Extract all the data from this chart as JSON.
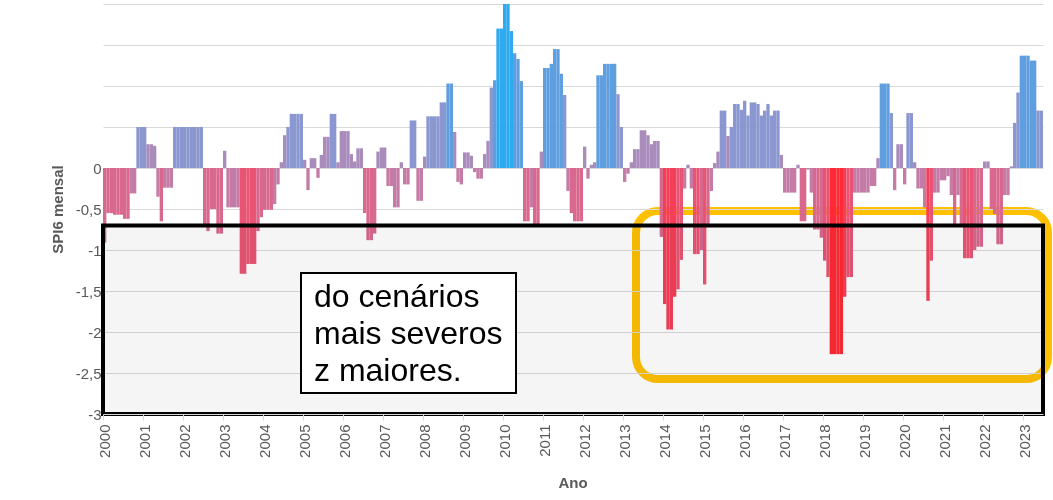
{
  "chart_data": {
    "type": "bar",
    "ylabel": "SPI6 mensal",
    "xlabel": "Ano",
    "annotations": [
      "do cenários",
      "mais severos",
      "z maiores."
    ],
    "categories": [
      "2000",
      null,
      null,
      null,
      null,
      null,
      null,
      null,
      null,
      null,
      null,
      null,
      "2001",
      null,
      null,
      null,
      null,
      null,
      null,
      null,
      null,
      null,
      null,
      null,
      "2002",
      null,
      null,
      null,
      null,
      null,
      null,
      null,
      null,
      null,
      null,
      null,
      "2003",
      null,
      null,
      null,
      null,
      null,
      null,
      null,
      null,
      null,
      null,
      null,
      "2004",
      null,
      null,
      null,
      null,
      null,
      null,
      null,
      null,
      null,
      null,
      null,
      "2005",
      null,
      null,
      null,
      null,
      null,
      null,
      null,
      null,
      null,
      null,
      null,
      "2006",
      null,
      null,
      null,
      null,
      null,
      null,
      null,
      null,
      null,
      null,
      null,
      "2007",
      null,
      null,
      null,
      null,
      null,
      null,
      null,
      null,
      null,
      null,
      null,
      "2008",
      null,
      null,
      null,
      null,
      null,
      null,
      null,
      null,
      null,
      null,
      null,
      "2009",
      null,
      null,
      null,
      null,
      null,
      null,
      null,
      null,
      null,
      null,
      null,
      "2010",
      null,
      null,
      null,
      null,
      null,
      null,
      null,
      null,
      null,
      null,
      null,
      "2011",
      null,
      null,
      null,
      null,
      null,
      null,
      null,
      null,
      null,
      null,
      null,
      "2012",
      null,
      null,
      null,
      null,
      null,
      null,
      null,
      null,
      null,
      null,
      null,
      "2013",
      null,
      null,
      null,
      null,
      null,
      null,
      null,
      null,
      null,
      null,
      null,
      "2014",
      null,
      null,
      null,
      null,
      null,
      null,
      null,
      null,
      null,
      null,
      null,
      "2015",
      null,
      null,
      null,
      null,
      null,
      null,
      null,
      null,
      null,
      null,
      null,
      "2016",
      null,
      null,
      null,
      null,
      null,
      null,
      null,
      null,
      null,
      null,
      null,
      "2017",
      null,
      null,
      null,
      null,
      null,
      null,
      null,
      null,
      null,
      null,
      null,
      "2018",
      null,
      null,
      null,
      null,
      null,
      null,
      null,
      null,
      null,
      null,
      null,
      "2019",
      null,
      null,
      null,
      null,
      null,
      null,
      null,
      null,
      null,
      null,
      null,
      "2020",
      null,
      null,
      null,
      null,
      null,
      null,
      null,
      null,
      null,
      null,
      null,
      "2021",
      null,
      null,
      null,
      null,
      null,
      null,
      null,
      null,
      null,
      null,
      null,
      "2022",
      null,
      null,
      null,
      null,
      null,
      null,
      null,
      null,
      null,
      null,
      null,
      "2023",
      null,
      null,
      null,
      null,
      null
    ],
    "values": [
      -0.91,
      -0.55,
      -0.55,
      -0.57,
      -0.57,
      -0.57,
      -0.62,
      -0.62,
      -0.31,
      -0.31,
      0.5,
      0.5,
      0.5,
      0.29,
      0.29,
      0.27,
      -0.35,
      -0.65,
      -0.24,
      -0.24,
      -0.24,
      0.5,
      0.5,
      0.5,
      0.5,
      0.5,
      0.5,
      0.5,
      0.5,
      0.5,
      -0.7,
      -0.77,
      -0.5,
      -0.5,
      -0.8,
      -0.8,
      0.21,
      -0.48,
      -0.48,
      -0.48,
      -0.48,
      -1.29,
      -1.29,
      -1.17,
      -1.17,
      -1.17,
      -0.77,
      -0.6,
      -0.51,
      -0.51,
      -0.51,
      -0.44,
      -0.2,
      0.07,
      0.4,
      0.5,
      0.66,
      0.66,
      0.66,
      0.66,
      0.1,
      -0.27,
      0.12,
      0.12,
      -0.12,
      0.16,
      0.38,
      0.38,
      0.66,
      0.66,
      0.07,
      0.45,
      0.45,
      0.45,
      0.17,
      0.08,
      0.24,
      0.24,
      -0.55,
      -0.88,
      -0.88,
      -0.8,
      0.2,
      0.25,
      0.25,
      -0.22,
      -0.22,
      -0.48,
      -0.48,
      0.07,
      -0.2,
      -0.2,
      0.58,
      0.58,
      -0.4,
      -0.4,
      0.14,
      0.63,
      0.63,
      0.63,
      0.63,
      0.8,
      0.8,
      1.03,
      1.03,
      0.44,
      -0.17,
      -0.2,
      0.19,
      0.19,
      0.15,
      -0.05,
      -0.13,
      -0.13,
      0.17,
      0.33,
      0.98,
      1.07,
      1.7,
      1.7,
      2,
      2,
      1.67,
      1.4,
      1.33,
      1.06,
      -0.65,
      -0.65,
      -0.48,
      -0.72,
      -0.72,
      0.2,
      1.22,
      1.22,
      1.27,
      1.45,
      1.45,
      1.15,
      0.89,
      -0.28,
      -0.55,
      -0.65,
      -0.65,
      -0.65,
      0.26,
      -0.13,
      0.04,
      0.07,
      1.13,
      1.13,
      1.27,
      1.27,
      1.27,
      1.27,
      0.9,
      0.5,
      -0.17,
      -0.07,
      0.07,
      0.23,
      0.23,
      0.46,
      0.46,
      0.4,
      0.29,
      0.33,
      0.33,
      -0.84,
      -1.66,
      -1.97,
      -1.97,
      -1.57,
      -1.48,
      -1.12,
      -0.25,
      0.04,
      -0.25,
      -1.05,
      -1.05,
      -1,
      -1.42,
      -0.72,
      -0.28,
      0.06,
      0.2,
      0.7,
      0.7,
      0.39,
      0.5,
      0.78,
      0.78,
      0.71,
      0.82,
      0.64,
      0.8,
      0.8,
      0.78,
      0.64,
      0.7,
      0.78,
      0.64,
      0.7,
      0.7,
      0.16,
      -0.3,
      -0.3,
      -0.3,
      -0.3,
      0.04,
      -0.65,
      -0.65,
      -0.02,
      -0.3,
      -0.75,
      -0.75,
      -0.85,
      -1.13,
      -1.33,
      -2.27,
      -2.27,
      -2.27,
      -2.27,
      -1.57,
      -1.33,
      -1.33,
      -0.3,
      -0.3,
      -0.3,
      -0.3,
      -0.3,
      -0.22,
      -0.22,
      0.12,
      1.03,
      1.03,
      1.03,
      0.67,
      -0.27,
      0.29,
      0.29,
      -0.2,
      0.67,
      0.67,
      0.07,
      -0.25,
      -0.25,
      -0.48,
      -1.62,
      -1.13,
      -0.3,
      -0.3,
      -0.15,
      -0.15,
      -0.1,
      -0.33,
      -0.7,
      -0.33,
      -0.7,
      -1.1,
      -1.1,
      -1.1,
      -1,
      -0.96,
      -0.96,
      0.08,
      0.08,
      -0.5,
      -0.56,
      -0.93,
      -0.93,
      -0.33,
      -0.33,
      0.02,
      0.55,
      0.92,
      1.37,
      1.37,
      1.37,
      1.31,
      1.31,
      0.7,
      0.7
    ],
    "colors": [
      "#d9688f",
      "#d9688f",
      "#d9688f",
      "#d9688f",
      "#d9688f",
      "#d9688f",
      "#d9688f",
      "#d9688f",
      "#c47ca6",
      "#c47ca6",
      "#8a97d0",
      "#8a97d0",
      "#8a97d0",
      "#a98cbc",
      "#a98cbc",
      "#a98cbc",
      "#c47ca6",
      "#d9688f",
      "#c47ca6",
      "#c47ca6",
      "#c47ca6",
      "#8a97d0",
      "#8a97d0",
      "#8a97d0",
      "#8a97d0",
      "#8a97d0",
      "#8a97d0",
      "#8a97d0",
      "#8a97d0",
      "#8a97d0",
      "#d9688f",
      "#d9688f",
      "#d9688f",
      "#d9688f",
      "#d9688f",
      "#d9688f",
      "#a98cbc",
      "#c47ca6",
      "#c47ca6",
      "#c47ca6",
      "#c47ca6",
      "#ea5474",
      "#ea5474",
      "#ea5474",
      "#ea5474",
      "#ea5474",
      "#d9688f",
      "#d9688f",
      "#d9688f",
      "#d9688f",
      "#d9688f",
      "#c47ca6",
      "#c47ca6",
      "#a98cbc",
      "#a98cbc",
      "#8a97d0",
      "#8a97d0",
      "#8a97d0",
      "#8a97d0",
      "#8a97d0",
      "#a98cbc",
      "#c47ca6",
      "#a98cbc",
      "#a98cbc",
      "#c47ca6",
      "#a98cbc",
      "#a98cbc",
      "#a98cbc",
      "#8a97d0",
      "#8a97d0",
      "#a98cbc",
      "#a98cbc",
      "#a98cbc",
      "#a98cbc",
      "#a98cbc",
      "#a98cbc",
      "#a98cbc",
      "#a98cbc",
      "#d9688f",
      "#d9688f",
      "#d9688f",
      "#d9688f",
      "#a98cbc",
      "#a98cbc",
      "#a98cbc",
      "#c47ca6",
      "#c47ca6",
      "#c47ca6",
      "#c47ca6",
      "#a98cbc",
      "#c47ca6",
      "#c47ca6",
      "#8a97d0",
      "#8a97d0",
      "#c47ca6",
      "#c47ca6",
      "#a98cbc",
      "#8a97d0",
      "#8a97d0",
      "#8a97d0",
      "#8a97d0",
      "#8a97d0",
      "#8a97d0",
      "#5f9fe0",
      "#5f9fe0",
      "#a98cbc",
      "#c47ca6",
      "#c47ca6",
      "#a98cbc",
      "#a98cbc",
      "#a98cbc",
      "#c47ca6",
      "#c47ca6",
      "#c47ca6",
      "#a98cbc",
      "#a98cbc",
      "#8a97d0",
      "#5f9fe0",
      "#2eaaf0",
      "#2eaaf0",
      "#2eaaf0",
      "#2eaaf0",
      "#2eaaf0",
      "#5f9fe0",
      "#5f9fe0",
      "#5f9fe0",
      "#d9688f",
      "#d9688f",
      "#c47ca6",
      "#d9688f",
      "#d9688f",
      "#a98cbc",
      "#5f9fe0",
      "#5f9fe0",
      "#5f9fe0",
      "#5f9fe0",
      "#5f9fe0",
      "#5f9fe0",
      "#8a97d0",
      "#c47ca6",
      "#d9688f",
      "#d9688f",
      "#d9688f",
      "#d9688f",
      "#a98cbc",
      "#c47ca6",
      "#a98cbc",
      "#a98cbc",
      "#5f9fe0",
      "#5f9fe0",
      "#5f9fe0",
      "#5f9fe0",
      "#5f9fe0",
      "#5f9fe0",
      "#8a97d0",
      "#8a97d0",
      "#c47ca6",
      "#c47ca6",
      "#a98cbc",
      "#a98cbc",
      "#a98cbc",
      "#a98cbc",
      "#a98cbc",
      "#a98cbc",
      "#a98cbc",
      "#a98cbc",
      "#a98cbc",
      "#d9688f",
      "#f53f58",
      "#f53f58",
      "#f53f58",
      "#f53f58",
      "#ea5474",
      "#ea5474",
      "#c47ca6",
      "#a98cbc",
      "#c47ca6",
      "#ea5474",
      "#ea5474",
      "#d9688f",
      "#ea5474",
      "#d9688f",
      "#c47ca6",
      "#a98cbc",
      "#a98cbc",
      "#8a97d0",
      "#8a97d0",
      "#a98cbc",
      "#8a97d0",
      "#8a97d0",
      "#8a97d0",
      "#8a97d0",
      "#8a97d0",
      "#8a97d0",
      "#8a97d0",
      "#8a97d0",
      "#8a97d0",
      "#8a97d0",
      "#8a97d0",
      "#8a97d0",
      "#8a97d0",
      "#8a97d0",
      "#8a97d0",
      "#a98cbc",
      "#c47ca6",
      "#c47ca6",
      "#c47ca6",
      "#c47ca6",
      "#a98cbc",
      "#d9688f",
      "#d9688f",
      "#c47ca6",
      "#c47ca6",
      "#d9688f",
      "#d9688f",
      "#d9688f",
      "#ea5474",
      "#ea5474",
      "#ff2a35",
      "#ff2a35",
      "#ff2a35",
      "#ff2a35",
      "#f53f58",
      "#ea5474",
      "#ea5474",
      "#c47ca6",
      "#c47ca6",
      "#c47ca6",
      "#c47ca6",
      "#c47ca6",
      "#c47ca6",
      "#c47ca6",
      "#a98cbc",
      "#5f9fe0",
      "#5f9fe0",
      "#5f9fe0",
      "#8a97d0",
      "#c47ca6",
      "#a98cbc",
      "#a98cbc",
      "#c47ca6",
      "#8a97d0",
      "#8a97d0",
      "#a98cbc",
      "#c47ca6",
      "#c47ca6",
      "#c47ca6",
      "#f53f58",
      "#ea5474",
      "#c47ca6",
      "#c47ca6",
      "#c47ca6",
      "#c47ca6",
      "#c47ca6",
      "#c47ca6",
      "#d9688f",
      "#c47ca6",
      "#d9688f",
      "#ea5474",
      "#ea5474",
      "#ea5474",
      "#d9688f",
      "#d9688f",
      "#d9688f",
      "#a98cbc",
      "#a98cbc",
      "#d9688f",
      "#d9688f",
      "#d9688f",
      "#d9688f",
      "#c47ca6",
      "#c47ca6",
      "#a98cbc",
      "#8a97d0",
      "#8a97d0",
      "#5f9fe0",
      "#5f9fe0",
      "#5f9fe0",
      "#5f9fe0",
      "#5f9fe0",
      "#8a97d0",
      "#8a97d0"
    ],
    "ylim": [
      -3,
      2
    ],
    "yticks": [
      {
        "value": -3,
        "label": "-3"
      },
      {
        "value": -2.5,
        "label": "-2,5"
      },
      {
        "value": -2,
        "label": "-2"
      },
      {
        "value": -1.5,
        "label": "-1,5"
      },
      {
        "value": -1,
        "label": "-1"
      },
      {
        "value": -0.5,
        "label": "-0,5"
      },
      0,
      {
        "value": 0.5,
        "label": null
      },
      {
        "value": 1,
        "label": null
      },
      {
        "value": 1.5,
        "label": null
      },
      {
        "value": 2,
        "label": null
      }
    ],
    "grid": "y",
    "bands": [
      {
        "axis": "y",
        "from": -3,
        "to": -0.7,
        "color": "#000000"
      }
    ]
  }
}
